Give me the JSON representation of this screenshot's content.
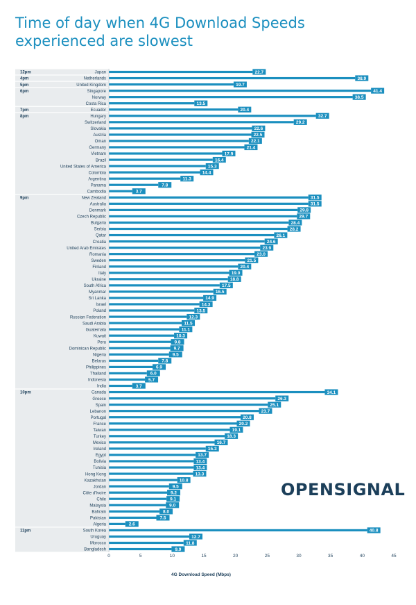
{
  "title": {
    "line1": "Time of day when 4G Download Speeds",
    "line2": "experienced are slowest"
  },
  "logo_text": "OPENSIGNAL",
  "colors": {
    "bar": "#1b8fbf",
    "title": "#1b8fbf",
    "band": "#e9ecee",
    "text": "#1c3f5a",
    "logo": "#1c3f5a"
  },
  "chart_data": {
    "type": "bar",
    "orientation": "horizontal",
    "xlabel": "4G Download Speed (Mbps)",
    "xlim": [
      0,
      45
    ],
    "xticks": [
      0,
      5,
      10,
      15,
      20,
      25,
      30,
      35,
      40,
      45
    ],
    "grid": false,
    "groups": [
      {
        "time": "12pm",
        "countries": [
          "Japan"
        ],
        "values": [
          22.7
        ]
      },
      {
        "time": "4pm",
        "countries": [
          "Netherlands"
        ],
        "values": [
          38.9
        ]
      },
      {
        "time": "5pm",
        "countries": [
          "United Kingdom"
        ],
        "values": [
          19.7
        ]
      },
      {
        "time": "6pm",
        "countries": [
          "Singapore",
          "Norway",
          "Costa Rica"
        ],
        "values": [
          41.4,
          38.5,
          13.5
        ]
      },
      {
        "time": "7pm",
        "countries": [
          "Ecuador"
        ],
        "values": [
          20.4
        ]
      },
      {
        "time": "8pm",
        "countries": [
          "Hungary",
          "Switzerland",
          "Slovakia",
          "Austria",
          "Oman",
          "Germany",
          "Vietnam",
          "Brazil",
          "United States of America",
          "Colombia",
          "Argentina",
          "Panama",
          "Cambodia"
        ],
        "values": [
          32.7,
          29.2,
          22.6,
          22.5,
          22.1,
          21.4,
          17.9,
          16.4,
          15.3,
          14.4,
          11.3,
          7.8,
          3.7
        ]
      },
      {
        "time": "9pm",
        "countries": [
          "New Zealand",
          "Australia",
          "Denmark",
          "Czech Republic",
          "Bulgaria",
          "Serbia",
          "Qatar",
          "Croatia",
          "United Arab Emirates",
          "Romania",
          "Sweden",
          "Finland",
          "Italy",
          "Ukraine",
          "South Africa",
          "Myanmar",
          "Sri Lanka",
          "Israel",
          "Poland",
          "Russian Federation",
          "Saudi Arabia",
          "Guatemala",
          "Kuwait",
          "Peru",
          "Dominican Republic",
          "Nigeria",
          "Belarus",
          "Philippines",
          "Thailand",
          "Indonesia",
          "India"
        ],
        "values": [
          31.5,
          31.5,
          29.8,
          29.7,
          28.4,
          28.2,
          26.1,
          24.6,
          23.9,
          23.0,
          21.5,
          20.4,
          19.0,
          18.8,
          17.5,
          16.5,
          14.9,
          14.3,
          13.5,
          12.3,
          11.5,
          11.1,
          10.3,
          9.8,
          9.7,
          9.5,
          7.8,
          6.9,
          6.0,
          5.7,
          3.7
        ]
      },
      {
        "time": "10pm",
        "countries": [
          "Canada",
          "Greece",
          "Spain",
          "Lebanon",
          "Portugal",
          "France",
          "Taiwan",
          "Turkey",
          "Mexico",
          "Ireland",
          "Egypt",
          "Bolivia",
          "Tunisia",
          "Hong Kong",
          "Kazakhstan",
          "Jordan",
          "Côte d'Ivoire",
          "Chile",
          "Malaysia",
          "Bahrain",
          "Pakistan",
          "Algeria"
        ],
        "values": [
          34.1,
          26.3,
          25.1,
          23.7,
          20.8,
          20.2,
          19.1,
          18.3,
          16.7,
          15.3,
          13.7,
          13.4,
          13.4,
          13.3,
          10.8,
          9.5,
          9.2,
          9.1,
          9.0,
          8.0,
          7.5,
          2.6
        ]
      },
      {
        "time": "11pm",
        "countries": [
          "South Korea",
          "Uruguay",
          "Morocco",
          "Bangladesh"
        ],
        "values": [
          40.8,
          12.7,
          11.8,
          9.9
        ]
      }
    ]
  }
}
